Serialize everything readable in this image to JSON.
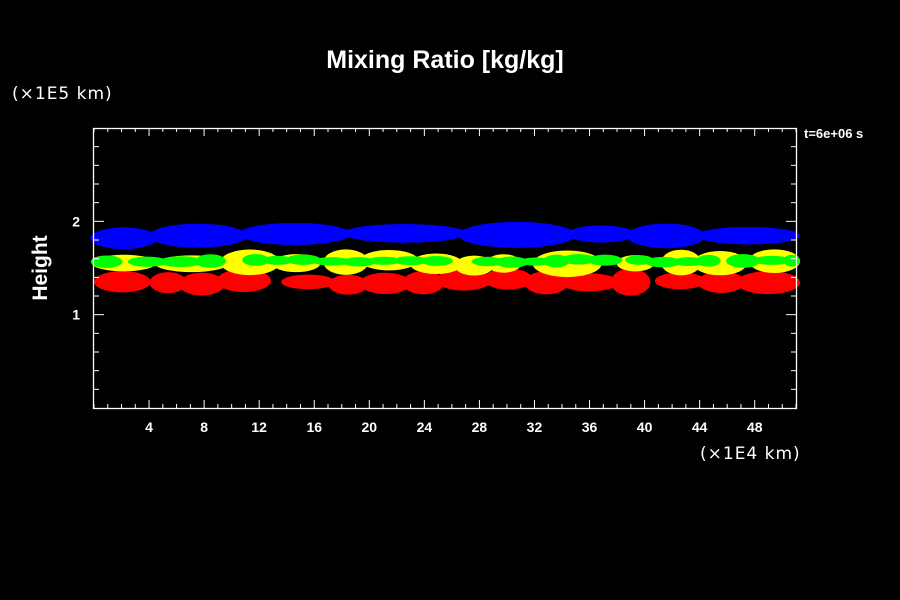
{
  "chart_data": {
    "type": "heatmap",
    "title": "Mixing Ratio [kg/kg]",
    "xlabel": "",
    "ylabel": "Height",
    "x_unit_label": "(×1E4 km)",
    "y_unit_label": "(×1E5 km)",
    "timestamp": "t=6e+06 s",
    "xlim": [
      0,
      51
    ],
    "ylim": [
      0,
      3
    ],
    "x_ticks": [
      "4",
      "8",
      "12",
      "16",
      "20",
      "24",
      "28",
      "32",
      "36",
      "40",
      "44",
      "48"
    ],
    "y_ticks": [
      "1",
      "2"
    ],
    "grid": false,
    "layers": [
      {
        "color": "#ff0000",
        "height_range": [
          1.2,
          1.5
        ]
      },
      {
        "color": "#ffff00",
        "height_range": [
          1.4,
          1.7
        ]
      },
      {
        "color": "#00ff00",
        "height_range": [
          1.5,
          1.65
        ]
      },
      {
        "color": "#0000ff",
        "height_range": [
          1.7,
          2.0
        ]
      }
    ],
    "colors": {
      "background": "#000000",
      "axes": "#ffffff"
    }
  }
}
